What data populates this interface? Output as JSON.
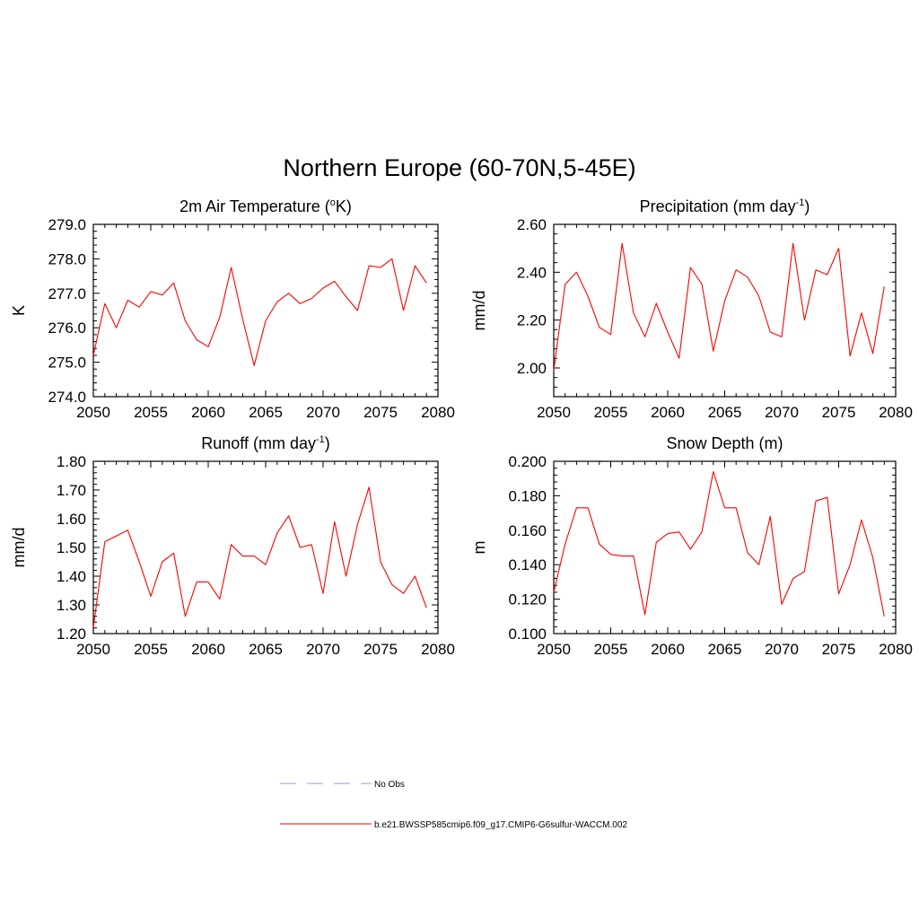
{
  "figure": {
    "title": "Northern Europe (60-70N,5-45E)"
  },
  "colors": {
    "model_line": "#ff0000",
    "obs_line": "#9999dd",
    "axis": "#000000"
  },
  "legend": {
    "items": [
      {
        "label": "No Obs",
        "style": "dashed",
        "color": "#9999dd"
      },
      {
        "label": "b.e21.BWSSP585cmip6.f09_g17.CMIP6-G6sulfur-WACCM.002",
        "style": "solid",
        "color": "#ff0000"
      }
    ]
  },
  "chart_data": [
    {
      "type": "line",
      "title_main": "2m Air Temperature (",
      "title_sup": "o",
      "title_tail": "K)",
      "ylabel": "K",
      "xlim": [
        2050,
        2080
      ],
      "ylim": [
        274.0,
        279.0
      ],
      "xticks": [
        2050,
        2055,
        2060,
        2065,
        2070,
        2075,
        2080
      ],
      "yticks": [
        "274.0",
        "275.0",
        "276.0",
        "277.0",
        "278.0",
        "279.0"
      ],
      "x": [
        2050,
        2051,
        2052,
        2053,
        2054,
        2055,
        2056,
        2057,
        2058,
        2059,
        2060,
        2061,
        2062,
        2063,
        2064,
        2065,
        2066,
        2067,
        2068,
        2069,
        2070,
        2071,
        2072,
        2073,
        2074,
        2075,
        2076,
        2077,
        2078,
        2079
      ],
      "series": [
        {
          "values": [
            275.2,
            276.7,
            276.0,
            276.8,
            276.6,
            277.05,
            276.95,
            277.3,
            276.2,
            275.65,
            275.45,
            276.3,
            277.75,
            276.25,
            274.9,
            276.2,
            276.75,
            277.0,
            276.7,
            276.85,
            277.15,
            277.35,
            276.9,
            276.5,
            277.8,
            277.75,
            278.0,
            276.5,
            277.8,
            277.3
          ]
        }
      ]
    },
    {
      "type": "line",
      "title_main": "Precipitation (mm day",
      "title_sup": "-1",
      "title_tail": ")",
      "ylabel": "mm/d",
      "xlim": [
        2050,
        2080
      ],
      "ylim": [
        1.88,
        2.6
      ],
      "xticks": [
        2050,
        2055,
        2060,
        2065,
        2070,
        2075,
        2080
      ],
      "yticks": [
        "2.00",
        "2.20",
        "2.40",
        "2.60"
      ],
      "x": [
        2050,
        2051,
        2052,
        2053,
        2054,
        2055,
        2056,
        2057,
        2058,
        2059,
        2060,
        2061,
        2062,
        2063,
        2064,
        2065,
        2066,
        2067,
        2068,
        2069,
        2070,
        2071,
        2072,
        2073,
        2074,
        2075,
        2076,
        2077,
        2078,
        2079
      ],
      "series": [
        {
          "values": [
            1.99,
            2.35,
            2.4,
            2.3,
            2.17,
            2.14,
            2.52,
            2.23,
            2.13,
            2.27,
            2.15,
            2.04,
            2.42,
            2.35,
            2.07,
            2.28,
            2.41,
            2.38,
            2.3,
            2.15,
            2.13,
            2.52,
            2.2,
            2.41,
            2.39,
            2.5,
            2.05,
            2.23,
            2.06,
            2.34
          ]
        }
      ]
    },
    {
      "type": "line",
      "title_main": "Runoff (mm day",
      "title_sup": "-1",
      "title_tail": ")",
      "ylabel": "mm/d",
      "xlim": [
        2050,
        2080
      ],
      "ylim": [
        1.2,
        1.8
      ],
      "xticks": [
        2050,
        2055,
        2060,
        2065,
        2070,
        2075,
        2080
      ],
      "yticks": [
        "1.20",
        "1.30",
        "1.40",
        "1.50",
        "1.60",
        "1.70",
        "1.80"
      ],
      "x": [
        2050,
        2051,
        2052,
        2053,
        2054,
        2055,
        2056,
        2057,
        2058,
        2059,
        2060,
        2061,
        2062,
        2063,
        2064,
        2065,
        2066,
        2067,
        2068,
        2069,
        2070,
        2071,
        2072,
        2073,
        2074,
        2075,
        2076,
        2077,
        2078,
        2079
      ],
      "series": [
        {
          "values": [
            1.22,
            1.52,
            1.54,
            1.56,
            1.45,
            1.33,
            1.45,
            1.48,
            1.26,
            1.38,
            1.38,
            1.32,
            1.51,
            1.47,
            1.47,
            1.44,
            1.55,
            1.61,
            1.5,
            1.51,
            1.34,
            1.59,
            1.4,
            1.58,
            1.71,
            1.45,
            1.37,
            1.34,
            1.4,
            1.29
          ]
        }
      ]
    },
    {
      "type": "line",
      "title_main": "Snow Depth (m)",
      "title_sup": "",
      "title_tail": "",
      "ylabel": "m",
      "xlim": [
        2050,
        2080
      ],
      "ylim": [
        0.1,
        0.2
      ],
      "xticks": [
        2050,
        2055,
        2060,
        2065,
        2070,
        2075,
        2080
      ],
      "yticks": [
        "0.100",
        "0.120",
        "0.140",
        "0.160",
        "0.180",
        "0.200"
      ],
      "x": [
        2050,
        2051,
        2052,
        2053,
        2054,
        2055,
        2056,
        2057,
        2058,
        2059,
        2060,
        2061,
        2062,
        2063,
        2064,
        2065,
        2066,
        2067,
        2068,
        2069,
        2070,
        2071,
        2072,
        2073,
        2074,
        2075,
        2076,
        2077,
        2078,
        2079
      ],
      "series": [
        {
          "values": [
            0.124,
            0.152,
            0.173,
            0.173,
            0.152,
            0.146,
            0.145,
            0.145,
            0.111,
            0.153,
            0.158,
            0.159,
            0.149,
            0.159,
            0.194,
            0.173,
            0.173,
            0.147,
            0.14,
            0.168,
            0.117,
            0.132,
            0.136,
            0.177,
            0.179,
            0.123,
            0.14,
            0.166,
            0.144,
            0.11
          ]
        }
      ]
    }
  ]
}
